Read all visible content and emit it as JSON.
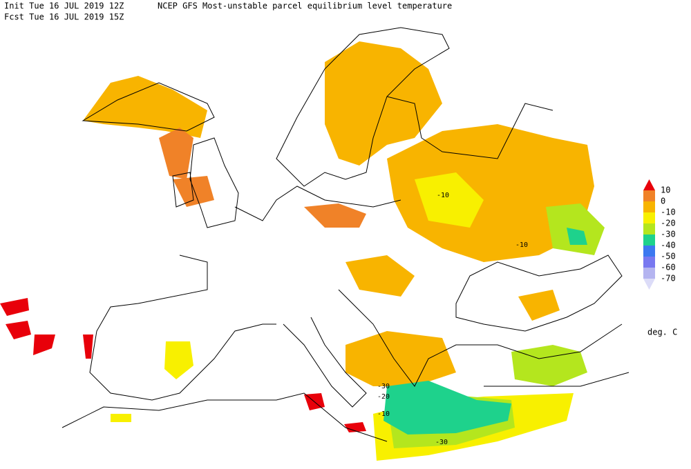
{
  "header": {
    "init": "Init  Tue 16 JUL 2019 12Z",
    "title": "NCEP GFS Most-unstable parcel equilibrium level temperature",
    "fcst": "Fcst Tue 16 JUL 2019 15Z"
  },
  "legend": {
    "labels": [
      "10",
      "0",
      "-10",
      "-20",
      "-30",
      "-40",
      "-50",
      "-60",
      "-70"
    ],
    "colors": [
      "#e8000a",
      "#f08228",
      "#f8b400",
      "#f8f000",
      "#b4e61e",
      "#1ed28c",
      "#3c78f0",
      "#7878f0",
      "#b4b4f0",
      "#dcdcf8"
    ],
    "unit": "deg. C"
  },
  "map": {
    "contour_labels": [
      "-10",
      "-10",
      "-30",
      "-20",
      "-10",
      "-30"
    ]
  }
}
